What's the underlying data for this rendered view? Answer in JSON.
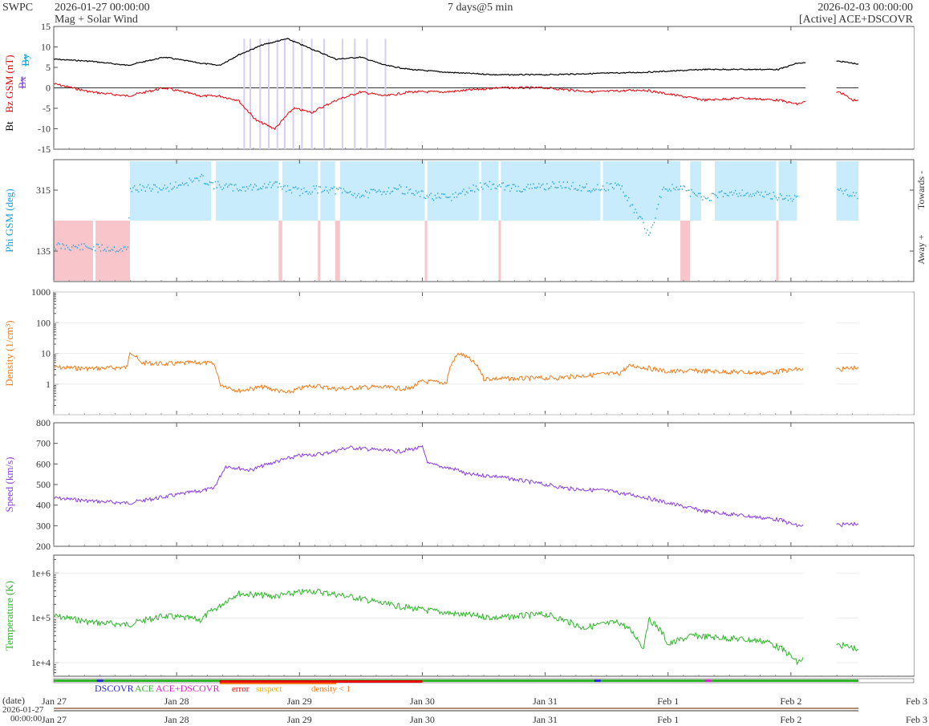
{
  "header": {
    "brand": "SWPC",
    "start_time": "2026-01-27 00:00:00",
    "product": "Mag + Solar Wind",
    "cadence": "7 days@5 min",
    "end_time": "2026-02-03 00:00:00",
    "source": "[Active] ACE+DSCOVR"
  },
  "colors": {
    "bt": "#000000",
    "bz": "#e8000b",
    "bx": "#7b3fd6",
    "by": "#00a5e6",
    "phi": "#1aa0d8",
    "phi_toward_fill": "#c8ecfb",
    "phi_away_fill": "#f8c6ca",
    "density": "#f07d1a",
    "speed": "#8a3ee0",
    "temperature": "#2fb52a",
    "dscovr": "#2b2bd6",
    "ace": "#2fb52a",
    "ace_dscovr": "#e21fd6",
    "error": "#e8000b",
    "suspect": "#f0b400",
    "density_lt_1": "#f07d1a"
  },
  "chart_data": [
    {
      "type": "line",
      "id": "mag",
      "ylabel_parts": [
        "Bt",
        "Bz GSM (nT)"
      ],
      "legend_extra": [
        "Bx",
        "By"
      ],
      "ylim": [
        -15,
        15
      ],
      "yticks": [
        -15,
        -10,
        -5,
        0,
        5,
        10,
        15
      ],
      "series": [
        {
          "name": "Bt",
          "x": [
            0,
            0.3,
            0.6,
            0.9,
            1.2,
            1.35,
            1.5,
            1.7,
            1.9,
            2.1,
            2.3,
            2.5,
            2.7,
            2.9,
            3.2,
            3.6,
            4.0,
            4.4,
            4.8,
            5.1,
            5.3,
            5.6,
            5.9,
            6.05,
            6.4,
            6.55
          ],
          "y": [
            7,
            6.5,
            5.5,
            7.5,
            6,
            5.5,
            8,
            10.5,
            12,
            9.5,
            7,
            7.5,
            5.5,
            4.5,
            3.8,
            3.2,
            3.2,
            3.5,
            3.8,
            4.2,
            4.5,
            4.5,
            4.5,
            6,
            6.5,
            5.8
          ]
        },
        {
          "name": "Bz GSM",
          "x": [
            0,
            0.3,
            0.6,
            0.9,
            1.2,
            1.35,
            1.5,
            1.65,
            1.8,
            1.95,
            2.1,
            2.3,
            2.5,
            2.7,
            2.9,
            3.2,
            3.6,
            4.0,
            4.4,
            4.8,
            5.1,
            5.3,
            5.6,
            5.9,
            6.05,
            6.4,
            6.5,
            6.55
          ],
          "y": [
            1,
            -1,
            -2,
            0,
            -2,
            -2,
            -3,
            -8,
            -10,
            -5,
            -6,
            -3,
            -1,
            -2,
            -1,
            -1,
            0,
            0,
            -1,
            -0.5,
            -2,
            -3,
            -2.5,
            -3,
            -4,
            -1,
            -3,
            -3
          ]
        }
      ]
    },
    {
      "type": "area",
      "id": "phi",
      "ylabel": "Phi GSM (deg)",
      "right_labels": [
        "Towards -",
        "Away +"
      ],
      "ylim": [
        45,
        405
      ],
      "yticks": [
        135,
        315
      ],
      "series": [
        {
          "name": "Phi GSM",
          "x": [
            0,
            0.3,
            0.6,
            0.62,
            0.9,
            1.2,
            1.3,
            1.5,
            1.8,
            2.0,
            2.2,
            2.5,
            2.8,
            3.0,
            3.2,
            3.5,
            3.8,
            4.1,
            4.4,
            4.6,
            4.85,
            4.95,
            5.1,
            5.3,
            5.5,
            5.8,
            6.05,
            6.4,
            6.55
          ],
          "y": [
            150,
            145,
            140,
            320,
            320,
            350,
            330,
            320,
            330,
            310,
            320,
            300,
            320,
            300,
            290,
            330,
            320,
            330,
            320,
            330,
            180,
            320,
            320,
            290,
            310,
            300,
            290,
            315,
            300
          ]
        }
      ]
    },
    {
      "type": "line",
      "id": "density",
      "ylabel": "Density (1/cm³)",
      "scale": "log",
      "ylim": [
        0.1,
        1000
      ],
      "ytick_labels": [
        "1",
        "10",
        "100",
        "1000"
      ],
      "series": [
        {
          "name": "Density",
          "x": [
            0,
            0.3,
            0.6,
            0.62,
            0.7,
            0.9,
            1.2,
            1.3,
            1.35,
            1.5,
            1.7,
            1.9,
            2.1,
            2.3,
            2.6,
            2.9,
            3.0,
            3.2,
            3.3,
            3.5,
            3.8,
            4.1,
            4.4,
            4.6,
            4.7,
            5.0,
            5.2,
            5.5,
            5.8,
            6.05,
            6.4,
            6.55
          ],
          "y": [
            3.5,
            3.2,
            3.5,
            12,
            5,
            4.5,
            5,
            4.5,
            1,
            0.6,
            0.8,
            0.5,
            0.9,
            0.7,
            0.8,
            0.7,
            1.2,
            1.1,
            10,
            1.5,
            1.5,
            1.6,
            2,
            2.2,
            4,
            2.5,
            2.7,
            2.5,
            2.3,
            3,
            3,
            3.5
          ]
        }
      ]
    },
    {
      "type": "line",
      "id": "speed",
      "ylabel": "Speed (km/s)",
      "ylim": [
        200,
        800
      ],
      "yticks": [
        200,
        300,
        400,
        500,
        600,
        700,
        800
      ],
      "series": [
        {
          "name": "Speed",
          "x": [
            0,
            0.3,
            0.6,
            0.9,
            1.2,
            1.3,
            1.4,
            1.6,
            1.8,
            2.0,
            2.2,
            2.4,
            2.6,
            2.8,
            3.0,
            3.05,
            3.3,
            3.35,
            3.6,
            3.9,
            4.2,
            4.5,
            4.8,
            5.0,
            5.3,
            5.6,
            5.9,
            6.05,
            6.4,
            6.55
          ],
          "y": [
            435,
            420,
            410,
            440,
            470,
            480,
            590,
            570,
            610,
            640,
            650,
            680,
            670,
            660,
            680,
            600,
            570,
            550,
            540,
            510,
            480,
            470,
            440,
            410,
            370,
            350,
            330,
            300,
            305,
            310
          ]
        }
      ]
    },
    {
      "type": "line",
      "id": "temperature",
      "ylabel": "Temperature (K)",
      "scale": "log",
      "ylim": [
        5000,
        2500000
      ],
      "ytick_labels": [
        "1e+4",
        "1e+5",
        "1e+6"
      ],
      "series": [
        {
          "name": "Temperature",
          "x": [
            0,
            0.3,
            0.6,
            0.9,
            1.2,
            1.35,
            1.5,
            1.8,
            2.1,
            2.4,
            2.7,
            3.0,
            3.3,
            3.6,
            4.0,
            4.3,
            4.6,
            4.8,
            4.85,
            5.0,
            5.2,
            5.5,
            5.8,
            6.05,
            6.4,
            6.55
          ],
          "y": [
            110000,
            80000,
            70000,
            110000,
            90000,
            180000,
            350000,
            300000,
            400000,
            300000,
            200000,
            150000,
            120000,
            100000,
            120000,
            60000,
            80000,
            20000,
            90000,
            25000,
            40000,
            35000,
            30000,
            10000,
            25000,
            20000
          ]
        }
      ]
    }
  ],
  "x_axis": {
    "date_label": "(date)",
    "start_time_date": "2026-01-27",
    "start_time_clock": "00:00:00",
    "tick_labels": [
      "Jan 27",
      "Jan 28",
      "Jan 29",
      "Jan 30",
      "Jan 31",
      "Feb 1",
      "Feb 2",
      "Feb 3"
    ]
  },
  "source_legend": [
    "DSCOVR",
    "ACE",
    "ACE+DSCOVR",
    "error",
    "suspect",
    "density < 1"
  ]
}
